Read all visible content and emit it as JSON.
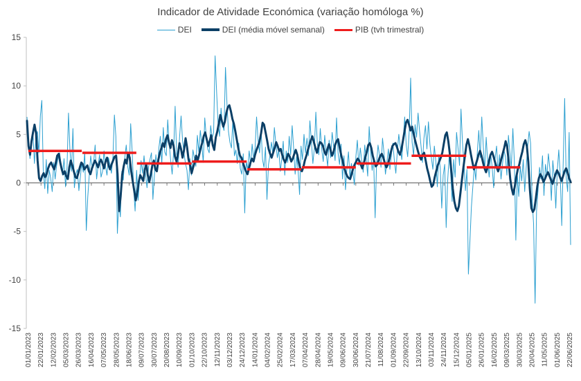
{
  "chart_data": {
    "type": "line",
    "title": "Indicador de Atividade Económica (variação homóloga %)",
    "xlabel": "",
    "ylabel": "",
    "ylim": [
      -15,
      15
    ],
    "yticks": [
      15,
      10,
      5,
      0,
      -5,
      -10,
      -15
    ],
    "grid": false,
    "legend_position": "top",
    "x_tick_labels": [
      "01/01/2023",
      "22/01/2023",
      "12/02/2023",
      "05/03/2023",
      "26/03/2023",
      "16/04/2023",
      "07/05/2023",
      "28/05/2023",
      "18/06/2023",
      "09/07/2023",
      "30/07/2023",
      "20/08/2023",
      "10/09/2023",
      "01/10/2023",
      "22/10/2023",
      "12/11/2023",
      "03/12/2023",
      "24/12/2023",
      "14/01/2024",
      "04/02/2024",
      "25/02/2024",
      "17/03/2024",
      "07/04/2024",
      "28/04/2024",
      "19/05/2024",
      "09/06/2024",
      "30/06/2024",
      "21/07/2024",
      "11/08/2024",
      "01/09/2024",
      "22/09/2024",
      "13/10/2024",
      "03/11/2024",
      "24/11/2024",
      "15/12/2024",
      "05/01/2025",
      "26/01/2025",
      "16/02/2025",
      "09/03/2025",
      "30/03/2025",
      "20/04/2025",
      "11/05/2025",
      "01/06/2025",
      "22/06/2025"
    ],
    "series": [
      {
        "name": "DEI",
        "color": "#2b9fd0",
        "style": "thin",
        "values": [
          6.8,
          4.2,
          2.5,
          3.8,
          5.1,
          2.0,
          4.6,
          5.3,
          3.1,
          6.9,
          8.5,
          1.2,
          -0.6,
          2.4,
          -1.1,
          1.3,
          0.5,
          -0.9,
          2.1,
          0.4,
          1.8,
          2.6,
          3.1,
          1.9,
          0.8,
          2.5,
          -0.4,
          1.6,
          7.2,
          3.4,
          1.2,
          5.6,
          -0.5,
          0.9,
          1.4,
          -0.8,
          0.6,
          2.0,
          1.1,
          3.2,
          -4.9,
          -1.5,
          0.7,
          2.8,
          1.6,
          2.2,
          3.9,
          0.4,
          1.8,
          2.9,
          0.6,
          1.2,
          3.3,
          1.7,
          0.8,
          2.6,
          1.9,
          1.0,
          2.7,
          7.0,
          4.8,
          -5.2,
          -1.8,
          -3.5,
          1.2,
          0.3,
          2.6,
          3.9,
          1.7,
          0.8,
          6.1,
          3.2,
          -0.6,
          -2.9,
          1.3,
          -1.8,
          0.4,
          2.3,
          1.0,
          2.8,
          0.9,
          -0.5,
          1.6,
          2.4,
          3.1,
          -1.7,
          0.8,
          2.9,
          1.4,
          3.6,
          4.8,
          1.9,
          5.7,
          3.2,
          2.8,
          6.5,
          4.1,
          2.3,
          0.9,
          3.3,
          7.9,
          3.1,
          1.6,
          4.7,
          6.9,
          4.4,
          3.0,
          2.0,
          1.3,
          -0.7,
          2.5,
          0.8,
          3.4,
          2.6,
          1.7,
          4.9,
          3.2,
          5.4,
          4.0,
          2.1,
          6.7,
          4.8,
          3.5,
          3.1,
          5.9,
          4.6,
          5.2,
          13.1,
          9.4,
          6.1,
          4.8,
          7.7,
          6.0,
          5.4,
          11.9,
          8.1,
          5.3,
          4.2,
          3.6,
          6.5,
          2.8,
          3.4,
          2.0,
          4.1,
          1.5,
          0.9,
          3.0,
          -3.1,
          2.2,
          1.4,
          3.3,
          1.8,
          4.0,
          2.5,
          3.6,
          6.8,
          4.4,
          3.1,
          5.5,
          2.4,
          1.6,
          3.7,
          -1.7,
          1.9,
          2.8,
          4.2,
          3.0,
          5.7,
          4.1,
          2.6,
          3.4,
          1.2,
          2.5,
          4.3,
          0.8,
          3.3,
          2.1,
          4.8,
          2.9,
          5.9,
          3.6,
          0.9,
          2.7,
          1.4,
          -1.2,
          3.8,
          2.4,
          5.0,
          3.1,
          4.6,
          2.8,
          6.4,
          4.3,
          2.0,
          3.6,
          7.3,
          4.1,
          2.9,
          5.6,
          3.4,
          2.2,
          4.9,
          3.0,
          1.7,
          4.4,
          2.6,
          5.2,
          3.8,
          2.3,
          6.7,
          3.1,
          1.9,
          4.0,
          0.4,
          2.8,
          -0.7,
          1.5,
          3.2,
          0.6,
          2.0,
          1.2,
          -0.2,
          2.7,
          4.4,
          1.8,
          3.6,
          2.3,
          1.1,
          3.9,
          2.5,
          0.7,
          5.8,
          3.4,
          1.3,
          2.6,
          -3.6,
          2.0,
          3.9,
          2.8,
          1.6,
          4.6,
          3.1,
          0.9,
          2.2,
          3.5,
          1.4,
          2.9,
          4.1,
          2.3,
          1.0,
          3.2,
          5.0,
          3.7,
          2.4,
          4.5,
          6.8,
          3.9,
          2.7,
          5.3,
          10.8,
          4.2,
          2.8,
          6.0,
          4.7,
          7.2,
          5.4,
          3.8,
          2.1,
          4.6,
          5.9,
          3.5,
          6.3,
          4.0,
          2.6,
          1.4,
          3.8,
          2.2,
          -0.4,
          2.9,
          1.5,
          -2.6,
          0.8,
          1.9,
          -4.6,
          0.3,
          2.7,
          1.2,
          -1.9,
          2.4,
          0.6,
          5.2,
          3.6,
          1.8,
          7.6,
          4.1,
          2.0,
          -0.8,
          1.4,
          -9.4,
          -6.0,
          -2.5,
          -0.4,
          1.8,
          0.3,
          3.1,
          5.4,
          2.6,
          6.8,
          3.9,
          1.3,
          4.7,
          2.2,
          0.6,
          3.0,
          1.7,
          -0.5,
          2.5,
          3.8,
          1.1,
          2.9,
          0.4,
          1.9,
          3.4,
          2.7,
          0.8,
          4.9,
          3.1,
          1.6,
          5.6,
          2.3,
          -5.9,
          0.9,
          -1.4,
          1.7,
          0.2,
          2.4,
          -0.9,
          1.5,
          3.8,
          5.3,
          4.1,
          -1.6,
          -4.2,
          -12.4,
          -2.9,
          -0.8,
          1.6,
          0.4,
          2.8,
          -1.3,
          1.9,
          0.7,
          3.0,
          1.4,
          -1.8,
          2.3,
          0.5,
          -2.6,
          1.2,
          3.4,
          0.9,
          -4.4,
          2.1,
          8.7,
          0.6,
          -0.9,
          5.2,
          -6.4
        ]
      },
      {
        "name": "DEI (média móvel semanal)",
        "color": "#0b3f66",
        "style": "thick",
        "values": [
          6.4,
          3.8,
          2.9,
          4.3,
          5.2,
          6.0,
          5.1,
          2.3,
          0.5,
          0.2,
          0.7,
          1.0,
          0.6,
          0.9,
          1.5,
          1.9,
          2.1,
          1.7,
          1.4,
          2.0,
          2.8,
          3.0,
          2.1,
          1.4,
          0.9,
          1.2,
          0.7,
          0.4,
          1.6,
          2.3,
          1.8,
          1.2,
          0.6,
          0.5,
          1.0,
          1.6,
          2.1,
          1.9,
          1.4,
          1.6,
          1.8,
          1.2,
          0.9,
          1.5,
          1.9,
          2.3,
          2.0,
          1.6,
          2.1,
          2.4,
          2.0,
          1.5,
          2.2,
          2.6,
          1.8,
          1.4,
          1.9,
          2.3,
          2.7,
          2.8,
          0.9,
          -2.9,
          -1.4,
          0.8,
          1.7,
          2.4,
          2.0,
          3.1,
          2.6,
          1.2,
          0.2,
          -0.8,
          -1.8,
          -1.0,
          0.1,
          0.8,
          0.5,
          0.2,
          1.4,
          1.9,
          0.8,
          0.1,
          0.9,
          1.8,
          2.3,
          1.4,
          1.2,
          2.4,
          3.1,
          3.6,
          4.1,
          3.7,
          4.5,
          4.9,
          4.2,
          3.6,
          4.4,
          3.9,
          2.7,
          2.2,
          3.0,
          4.1,
          3.5,
          2.6,
          3.4,
          4.6,
          3.7,
          2.4,
          1.8,
          1.0,
          1.6,
          2.1,
          2.8,
          2.3,
          2.9,
          3.6,
          4.1,
          4.8,
          5.2,
          4.5,
          3.8,
          4.3,
          4.9,
          3.9,
          3.4,
          4.7,
          5.3,
          6.1,
          7.0,
          6.4,
          5.8,
          6.3,
          7.2,
          7.8,
          8.0,
          7.4,
          6.6,
          6.1,
          5.3,
          4.4,
          3.5,
          2.8,
          2.6,
          2.1,
          1.6,
          1.2,
          0.9,
          1.5,
          2.1,
          2.5,
          2.2,
          2.9,
          3.4,
          3.8,
          4.3,
          5.1,
          6.2,
          6.0,
          5.2,
          4.4,
          3.5,
          3.0,
          2.6,
          3.1,
          3.6,
          4.2,
          3.8,
          3.3,
          3.5,
          2.9,
          2.4,
          2.1,
          2.6,
          3.0,
          2.7,
          2.2,
          2.5,
          3.0,
          3.4,
          2.9,
          2.1,
          1.5,
          1.2,
          1.6,
          2.3,
          2.8,
          3.4,
          3.9,
          4.4,
          4.8,
          4.2,
          3.6,
          3.1,
          3.7,
          4.2,
          4.1,
          3.8,
          3.2,
          2.9,
          3.5,
          4.0,
          3.4,
          2.8,
          3.2,
          3.9,
          4.3,
          4.5,
          3.7,
          2.9,
          2.3,
          1.6,
          1.1,
          0.7,
          0.5,
          0.4,
          0.9,
          1.5,
          1.9,
          2.2,
          2.5,
          2.3,
          1.9,
          1.5,
          2.0,
          2.6,
          3.2,
          3.9,
          4.1,
          3.6,
          2.8,
          2.2,
          1.7,
          1.9,
          2.4,
          2.8,
          3.0,
          2.6,
          2.0,
          1.6,
          1.9,
          2.5,
          3.2,
          3.8,
          4.0,
          4.1,
          3.7,
          3.2,
          2.9,
          3.5,
          4.4,
          5.3,
          6.2,
          6.5,
          6.0,
          5.4,
          5.8,
          5.1,
          4.4,
          3.8,
          3.2,
          2.7,
          2.4,
          2.9,
          3.1,
          2.3,
          1.5,
          0.9,
          0.2,
          -0.4,
          -0.2,
          0.6,
          1.2,
          1.8,
          2.2,
          2.6,
          3.1,
          4.0,
          4.9,
          5.2,
          4.3,
          3.0,
          1.2,
          -0.6,
          -1.9,
          -2.6,
          -2.9,
          -2.4,
          -1.1,
          0.3,
          1.6,
          2.8,
          3.9,
          4.5,
          3.8,
          2.9,
          2.1,
          1.4,
          1.8,
          2.3,
          2.9,
          3.3,
          2.8,
          2.1,
          1.5,
          1.1,
          1.6,
          2.3,
          2.9,
          3.2,
          2.7,
          2.1,
          1.6,
          1.2,
          1.7,
          2.4,
          3.0,
          3.6,
          4.3,
          3.7,
          2.2,
          0.4,
          -0.6,
          -1.2,
          -0.4,
          0.6,
          1.4,
          1.9,
          2.6,
          3.2,
          4.0,
          4.4,
          3.8,
          2.2,
          -0.6,
          -2.6,
          -3.0,
          -2.7,
          -1.6,
          -0.3,
          0.5,
          0.9,
          0.6,
          0.1,
          0.4,
          0.8,
          1.1,
          0.7,
          0.3,
          -0.1,
          0.4,
          0.9,
          1.3,
          1.0,
          0.6,
          0.2,
          0.7,
          1.2,
          1.5,
          1.1,
          0.5,
          0.1
        ]
      },
      {
        "name": "PIB (tvh trimestral)",
        "color": "#ee1c1c",
        "style": "step",
        "segments": [
          {
            "from": "01/01/2023",
            "to": "31/03/2023",
            "value": 3.3
          },
          {
            "from": "01/04/2023",
            "to": "30/06/2023",
            "value": 3.1
          },
          {
            "from": "01/07/2023",
            "to": "30/09/2023",
            "value": 2.0
          },
          {
            "from": "01/10/2023",
            "to": "31/12/2023",
            "value": 2.2
          },
          {
            "from": "01/01/2024",
            "to": "31/03/2024",
            "value": 1.4
          },
          {
            "from": "01/04/2024",
            "to": "30/06/2024",
            "value": 1.6
          },
          {
            "from": "01/07/2024",
            "to": "30/09/2024",
            "value": 2.0
          },
          {
            "from": "01/10/2024",
            "to": "31/12/2024",
            "value": 2.8
          },
          {
            "from": "01/01/2025",
            "to": "31/03/2025",
            "value": 1.6
          }
        ]
      }
    ]
  }
}
